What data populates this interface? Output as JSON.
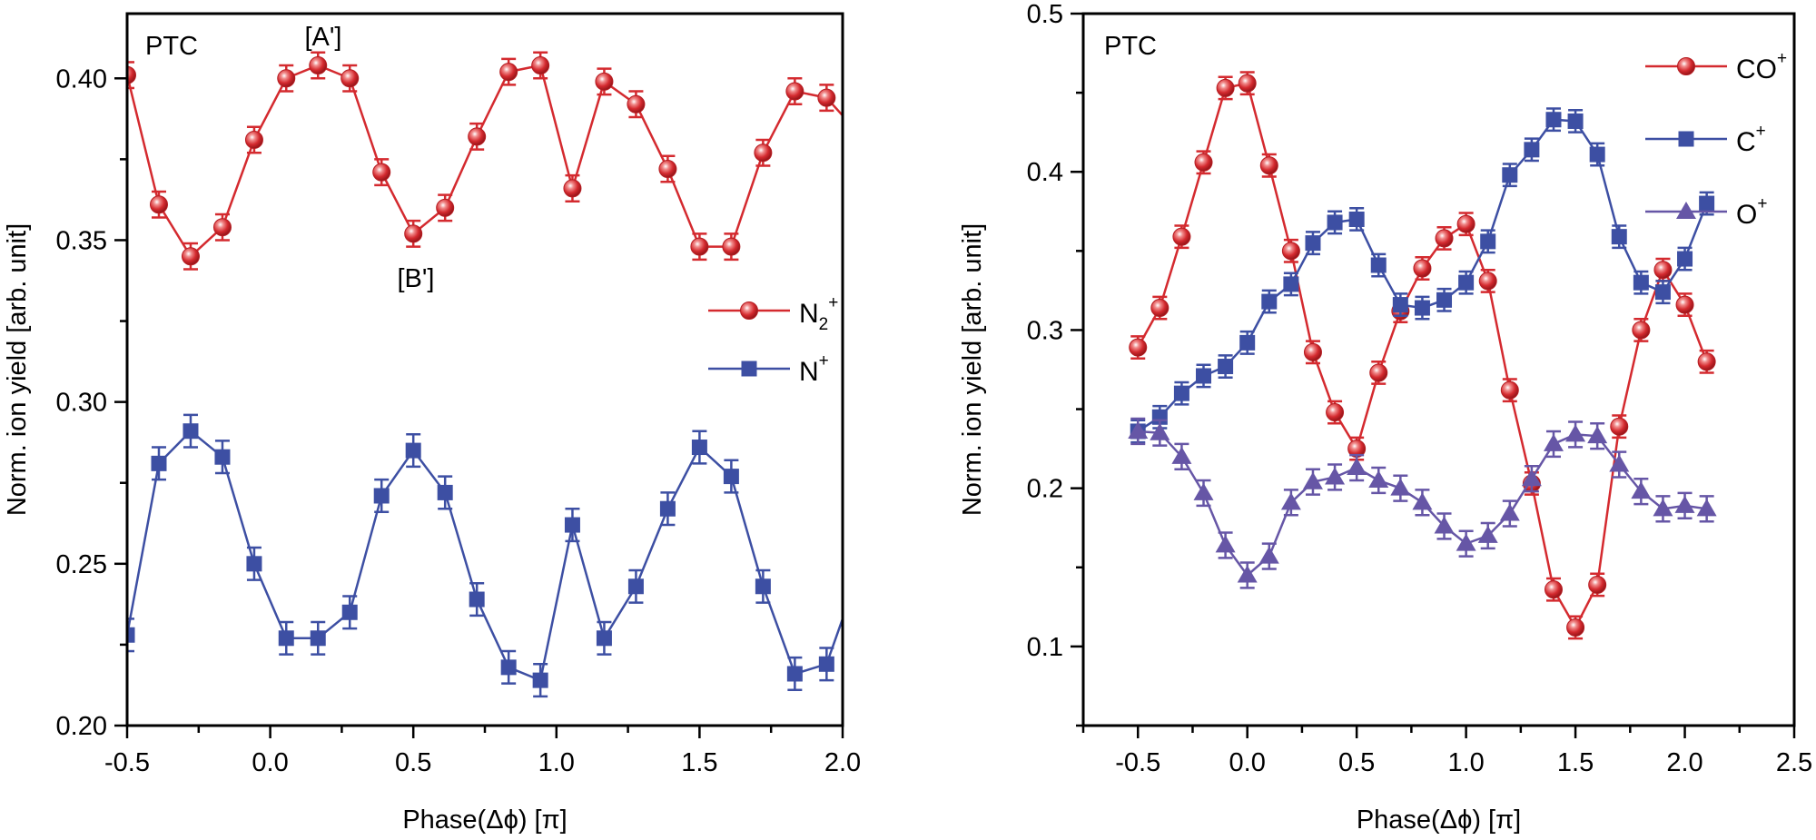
{
  "colors": {
    "red": "#d42a2f",
    "blue": "#3d4fa3",
    "purple": "#6656a6"
  },
  "chart_data": [
    {
      "type": "line",
      "xlabel": "Phase(Δϕ) [π]",
      "ylabel": "Norm. ion yield [arb. unit]",
      "xlim": [
        -0.5,
        2.0
      ],
      "ylim": [
        0.2,
        0.42
      ],
      "xticks": [
        -0.5,
        0.0,
        0.5,
        1.0,
        1.5,
        2.0
      ],
      "xtick_labels": [
        "-0.5",
        "0.0",
        "0.5",
        "1.0",
        "1.5",
        "2.0"
      ],
      "yticks": [
        0.2,
        0.25,
        0.3,
        0.35,
        0.4
      ],
      "ytick_labels": [
        "0.20",
        "0.25",
        "0.30",
        "0.35",
        "0.40"
      ],
      "grid": false,
      "legend": "right-middle",
      "annotations": [
        {
          "text": "PTC"
        },
        {
          "text": "[A']",
          "x": 0.167,
          "y": 0.404
        },
        {
          "text": "[B']",
          "x": 0.5,
          "y": 0.352
        }
      ],
      "series": [
        {
          "label": {
            "base": "N",
            "sub": "2",
            "sup": "+"
          },
          "marker": "sphere",
          "color": "#d42a2f",
          "x": [
            -0.5,
            -0.389,
            -0.278,
            -0.167,
            -0.056,
            0.056,
            0.167,
            0.278,
            0.389,
            0.5,
            0.611,
            0.722,
            0.833,
            0.944,
            1.056,
            1.167,
            1.278,
            1.389,
            1.5,
            1.611,
            1.722,
            1.833,
            1.944,
            2.056
          ],
          "y": [
            0.401,
            0.361,
            0.345,
            0.354,
            0.381,
            0.4,
            0.404,
            0.4,
            0.371,
            0.352,
            0.36,
            0.382,
            0.402,
            0.404,
            0.366,
            0.399,
            0.392,
            0.372,
            0.348,
            0.348,
            0.377,
            0.396,
            0.394,
            0.383
          ],
          "yerr": 0.004
        },
        {
          "label": {
            "base": "N",
            "sub": "",
            "sup": "+"
          },
          "marker": "square",
          "color": "#3d4fa3",
          "x": [
            -0.5,
            -0.389,
            -0.278,
            -0.167,
            -0.056,
            0.056,
            0.167,
            0.278,
            0.389,
            0.5,
            0.611,
            0.722,
            0.833,
            0.944,
            1.056,
            1.167,
            1.278,
            1.389,
            1.5,
            1.611,
            1.722,
            1.833,
            1.944,
            2.056
          ],
          "y": [
            0.228,
            0.281,
            0.291,
            0.283,
            0.25,
            0.227,
            0.227,
            0.235,
            0.271,
            0.285,
            0.272,
            0.239,
            0.218,
            0.214,
            0.262,
            0.227,
            0.243,
            0.267,
            0.286,
            0.277,
            0.243,
            0.216,
            0.219,
            0.247
          ],
          "yerr": 0.005
        }
      ]
    },
    {
      "type": "line",
      "xlabel": "Phase(Δϕ) [π]",
      "ylabel": "Norm. ion yield [arb. unit]",
      "xlim": [
        -0.75,
        2.5
      ],
      "ylim": [
        0.05,
        0.5
      ],
      "xticks": [
        -0.5,
        0.0,
        0.5,
        1.0,
        1.5,
        2.0,
        2.5
      ],
      "xtick_labels": [
        "-0.5",
        "0.0",
        "0.5",
        "1.0",
        "1.5",
        "2.0",
        "2.5"
      ],
      "yticks": [
        0.1,
        0.2,
        0.3,
        0.4,
        0.5
      ],
      "ytick_labels": [
        "0.1",
        "0.2",
        "0.3",
        "0.4",
        "0.5"
      ],
      "grid": false,
      "legend": "top-right",
      "annotations": [
        {
          "text": "PTC"
        }
      ],
      "series": [
        {
          "label": {
            "base": "CO",
            "sub": "",
            "sup": "+"
          },
          "marker": "sphere",
          "color": "#d42a2f",
          "x": [
            -0.5,
            -0.4,
            -0.3,
            -0.2,
            -0.1,
            0.0,
            0.1,
            0.2,
            0.3,
            0.4,
            0.5,
            0.6,
            0.7,
            0.8,
            0.9,
            1.0,
            1.1,
            1.2,
            1.3,
            1.4,
            1.5,
            1.6,
            1.7,
            1.8,
            1.9,
            2.0,
            2.1
          ],
          "y": [
            0.289,
            0.314,
            0.359,
            0.406,
            0.453,
            0.456,
            0.404,
            0.35,
            0.286,
            0.248,
            0.225,
            0.273,
            0.312,
            0.339,
            0.358,
            0.367,
            0.331,
            0.262,
            0.203,
            0.136,
            0.112,
            0.139,
            0.239,
            0.3,
            0.338,
            0.316,
            0.28
          ],
          "yerr": 0.007
        },
        {
          "label": {
            "base": "C",
            "sub": "",
            "sup": "+"
          },
          "marker": "square",
          "color": "#3d4fa3",
          "x": [
            -0.5,
            -0.4,
            -0.3,
            -0.2,
            -0.1,
            0.0,
            0.1,
            0.2,
            0.3,
            0.4,
            0.5,
            0.6,
            0.7,
            0.8,
            0.9,
            1.0,
            1.1,
            1.2,
            1.3,
            1.4,
            1.5,
            1.6,
            1.7,
            1.8,
            1.9,
            2.0,
            2.1
          ],
          "y": [
            0.236,
            0.245,
            0.26,
            0.271,
            0.277,
            0.292,
            0.318,
            0.329,
            0.355,
            0.368,
            0.37,
            0.341,
            0.316,
            0.314,
            0.319,
            0.33,
            0.356,
            0.398,
            0.414,
            0.433,
            0.432,
            0.411,
            0.359,
            0.33,
            0.324,
            0.345,
            0.38
          ],
          "yerr": 0.007
        },
        {
          "label": {
            "base": "O",
            "sub": "",
            "sup": "+"
          },
          "marker": "triangle",
          "color": "#6656a6",
          "x": [
            -0.5,
            -0.4,
            -0.3,
            -0.2,
            -0.1,
            0.0,
            0.1,
            0.2,
            0.3,
            0.4,
            0.5,
            0.6,
            0.7,
            0.8,
            0.9,
            1.0,
            1.1,
            1.2,
            1.3,
            1.4,
            1.5,
            1.6,
            1.7,
            1.8,
            1.9,
            2.0,
            2.1
          ],
          "y": [
            0.236,
            0.235,
            0.22,
            0.197,
            0.164,
            0.145,
            0.157,
            0.191,
            0.204,
            0.207,
            0.213,
            0.205,
            0.2,
            0.191,
            0.176,
            0.165,
            0.17,
            0.184,
            0.206,
            0.228,
            0.234,
            0.233,
            0.215,
            0.198,
            0.187,
            0.189,
            0.187
          ],
          "yerr": 0.008
        }
      ]
    }
  ]
}
